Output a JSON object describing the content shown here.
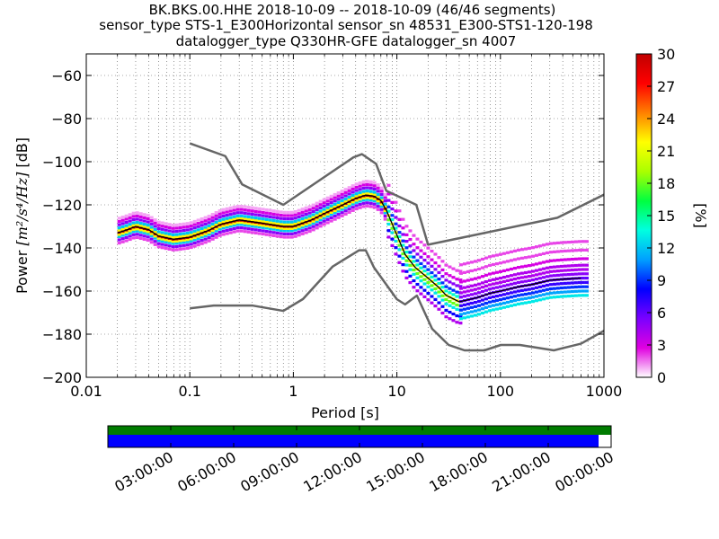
{
  "chart_data": {
    "type": "heatmap",
    "title_lines": [
      "BK.BKS.00.HHE   2018-10-09 -- 2018-10-09  (46/46 segments)",
      "sensor_type STS-1_E300Horizontal sensor_sn 48531_E300-STS1-120-198",
      "datalogger_type Q330HR-GFE datalogger_sn 4007"
    ],
    "xlabel": "Period [s]",
    "ylabel_prefix": "Power ",
    "ylabel_units": "[m²/s⁴/Hz]",
    "ylabel_suffix": " [dB]",
    "x_scale": "log",
    "xlim": [
      0.01,
      1000
    ],
    "ylim": [
      -200,
      -50
    ],
    "x_ticks": [
      {
        "value": 0.01,
        "label": "0.01"
      },
      {
        "value": 0.1,
        "label": "0.1"
      },
      {
        "value": 1,
        "label": "1"
      },
      {
        "value": 10,
        "label": "10"
      },
      {
        "value": 100,
        "label": "100"
      },
      {
        "value": 1000,
        "label": "1000"
      }
    ],
    "y_ticks": [
      {
        "value": -60,
        "label": "−60"
      },
      {
        "value": -80,
        "label": "−80"
      },
      {
        "value": -100,
        "label": "−100"
      },
      {
        "value": -120,
        "label": "−120"
      },
      {
        "value": -140,
        "label": "−140"
      },
      {
        "value": -160,
        "label": "−160"
      },
      {
        "value": -180,
        "label": "−180"
      },
      {
        "value": -200,
        "label": "−200"
      }
    ],
    "grid": true,
    "colorbar": {
      "label": "[%]",
      "range": [
        0,
        30
      ],
      "ticks": [
        {
          "value": 0,
          "label": "0"
        },
        {
          "value": 3,
          "label": "3"
        },
        {
          "value": 6,
          "label": "6"
        },
        {
          "value": 9,
          "label": "9"
        },
        {
          "value": 12,
          "label": "12"
        },
        {
          "value": 15,
          "label": "15"
        },
        {
          "value": 18,
          "label": "18"
        },
        {
          "value": 21,
          "label": "21"
        },
        {
          "value": 24,
          "label": "24"
        },
        {
          "value": 27,
          "label": "27"
        },
        {
          "value": 30,
          "label": "30"
        }
      ],
      "colormap": [
        "#ffffff",
        "#e000e0",
        "#7a00ff",
        "#0000ff",
        "#00a0ff",
        "#00ffe0",
        "#00ff40",
        "#aaff00",
        "#ffff00",
        "#ff8000",
        "#ff0000",
        "#c00000"
      ]
    },
    "noise_models": [
      {
        "name": "high",
        "points": [
          [
            0.1,
            -91.5
          ],
          [
            0.22,
            -97.4
          ],
          [
            0.32,
            -110.5
          ],
          [
            0.8,
            -120
          ],
          [
            3.8,
            -98
          ],
          [
            4.6,
            -96.5
          ],
          [
            6.3,
            -101
          ],
          [
            7.9,
            -113.5
          ],
          [
            15.4,
            -120
          ],
          [
            20,
            -138.5
          ],
          [
            354.8,
            -126
          ],
          [
            10000,
            -91.5
          ]
        ]
      },
      {
        "name": "low",
        "points": [
          [
            0.1,
            -168
          ],
          [
            0.17,
            -166.7
          ],
          [
            0.4,
            -166.7
          ],
          [
            0.8,
            -169.2
          ],
          [
            1.24,
            -163.7
          ],
          [
            2.4,
            -148.6
          ],
          [
            4.3,
            -141.1
          ],
          [
            5,
            -141.1
          ],
          [
            6,
            -149
          ],
          [
            10,
            -163.8
          ],
          [
            12,
            -166.2
          ],
          [
            15.6,
            -162.1
          ],
          [
            21.9,
            -177.5
          ],
          [
            31.6,
            -185
          ],
          [
            45,
            -187.5
          ],
          [
            70,
            -187.5
          ],
          [
            101,
            -185
          ],
          [
            154,
            -185
          ],
          [
            328,
            -187.5
          ],
          [
            600,
            -184.4
          ],
          [
            10000,
            -151.5
          ]
        ]
      }
    ],
    "mean_psd": {
      "name": "mean",
      "points": [
        [
          0.02,
          -133
        ],
        [
          0.025,
          -131.5
        ],
        [
          0.03,
          -130
        ],
        [
          0.04,
          -131.5
        ],
        [
          0.05,
          -134.5
        ],
        [
          0.07,
          -136
        ],
        [
          0.1,
          -135
        ],
        [
          0.15,
          -132
        ],
        [
          0.2,
          -129
        ],
        [
          0.3,
          -127
        ],
        [
          0.5,
          -128.5
        ],
        [
          0.8,
          -130
        ],
        [
          1,
          -130
        ],
        [
          1.5,
          -127
        ],
        [
          2,
          -124
        ],
        [
          3,
          -120
        ],
        [
          4,
          -117
        ],
        [
          5,
          -115.5
        ],
        [
          6,
          -116
        ],
        [
          7,
          -118
        ],
        [
          8,
          -123
        ],
        [
          10,
          -134
        ],
        [
          12,
          -143
        ],
        [
          15,
          -149
        ],
        [
          20,
          -154
        ],
        [
          25,
          -158
        ],
        [
          30,
          -162
        ],
        [
          40,
          -165
        ],
        [
          60,
          -163
        ],
        [
          80,
          -161
        ],
        [
          100,
          -160
        ],
        [
          150,
          -158
        ],
        [
          200,
          -157
        ],
        [
          300,
          -155
        ],
        [
          400,
          -154.5
        ],
        [
          600,
          -154
        ]
      ]
    },
    "density_bands": [
      {
        "x_range": [
          0.02,
          8
        ],
        "rel_offsets_db": [
          -5,
          -3.5,
          -2,
          -1,
          0,
          1,
          2,
          3.5,
          5,
          6.5
        ],
        "probabilities": [
          2,
          5,
          12,
          22,
          30,
          22,
          12,
          5,
          3,
          1
        ]
      },
      {
        "x_range": [
          8,
          40
        ],
        "rel_offsets_db": [
          -10,
          -7,
          -4,
          -2,
          0,
          2,
          4,
          7,
          10,
          14
        ],
        "probabilities": [
          4,
          8,
          13,
          18,
          22,
          14,
          9,
          5,
          3,
          2
        ]
      },
      {
        "x_range": [
          40,
          700
        ],
        "rel_offsets_db": [
          -8,
          -6,
          -4,
          -2,
          0,
          2,
          4,
          6,
          9,
          13,
          17
        ],
        "probabilities": [
          13,
          11,
          9,
          7,
          6,
          5,
          4,
          4,
          3,
          2,
          2
        ]
      }
    ],
    "timeline": {
      "labels": [
        "03:00:00",
        "06:00:00",
        "09:00:00",
        "12:00:00",
        "15:00:00",
        "18:00:00",
        "21:00:00",
        "00:00:00"
      ],
      "data_coverage": 0.975,
      "colors": {
        "coverage": "#007c00",
        "data": "#0000ff"
      }
    }
  }
}
